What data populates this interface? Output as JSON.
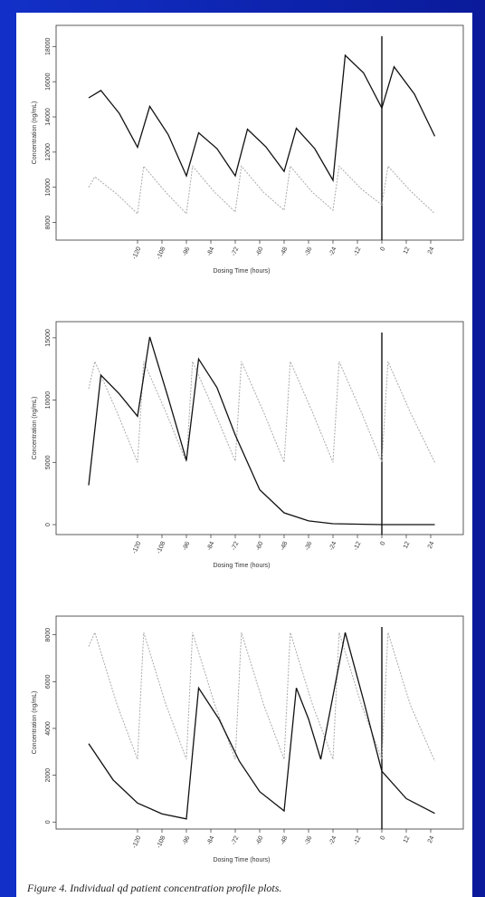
{
  "chart_data": [
    {
      "type": "line",
      "xlabel": "Dosing Time (hours)",
      "ylabel": "Concentration (ng/mL)",
      "xlim": [
        -160,
        40
      ],
      "ylim": [
        7000,
        19200
      ],
      "xticks": [
        -120,
        -108,
        -96,
        -84,
        -72,
        -60,
        -48,
        -36,
        -24,
        -12,
        0,
        12,
        24
      ],
      "yticks": [
        8000,
        10000,
        12000,
        14000,
        16000,
        18000
      ],
      "vline_x": 0,
      "series": [
        {
          "color": "#aaaaaa",
          "x": [
            -144,
            -141,
            -130,
            -120,
            -117,
            -106,
            -96,
            -93,
            -82,
            -72,
            -69,
            -58,
            -48,
            -45,
            -34,
            -24,
            -21,
            -10,
            0,
            3,
            14,
            26
          ],
          "values": [
            10000,
            10600,
            9600,
            8500,
            11200,
            9700,
            8500,
            11200,
            9700,
            8600,
            11200,
            9700,
            8700,
            11200,
            9700,
            8700,
            11200,
            9900,
            9000,
            11200,
            9800,
            8500
          ]
        },
        {
          "color": "#111111",
          "x": [
            -144,
            -138,
            -129,
            -120,
            -114,
            -105,
            -96,
            -90,
            -81,
            -72,
            -66,
            -57,
            -48,
            -42,
            -33,
            -24,
            -18,
            -9,
            0,
            6,
            16,
            26
          ],
          "values": [
            15080,
            15500,
            14200,
            12270,
            14600,
            13000,
            10650,
            13100,
            12200,
            10650,
            13300,
            12300,
            10900,
            13350,
            12200,
            10400,
            17500,
            16500,
            14500,
            16850,
            15300,
            12900
          ]
        }
      ]
    },
    {
      "type": "line",
      "xlabel": "Dosing Time (hours)",
      "ylabel": "Concentration (ng/mL)",
      "xlim": [
        -160,
        40
      ],
      "ylim": [
        -800,
        16300
      ],
      "xticks": [
        -120,
        -108,
        -96,
        -84,
        -72,
        -60,
        -48,
        -36,
        -24,
        -12,
        0,
        12,
        24
      ],
      "yticks": [
        0,
        5000,
        10000,
        15000
      ],
      "vline_x": 0,
      "series": [
        {
          "color": "#aaaaaa",
          "x": [
            -144,
            -141,
            -130,
            -120,
            -117,
            -106,
            -96,
            -93,
            -82,
            -72,
            -69,
            -58,
            -48,
            -45,
            -34,
            -24,
            -21,
            -10,
            0,
            3,
            14,
            26
          ],
          "values": [
            10900,
            13100,
            9000,
            5000,
            13100,
            9000,
            5000,
            13100,
            9000,
            5100,
            13100,
            9000,
            5000,
            13100,
            9000,
            5000,
            13100,
            9000,
            5000,
            13100,
            9000,
            5000
          ]
        },
        {
          "color": "#111111",
          "x": [
            -144,
            -138,
            -129,
            -120,
            -114,
            -105,
            -96,
            -90,
            -81,
            -72,
            -60,
            -48,
            -36,
            -24,
            0,
            26
          ],
          "values": [
            3160,
            12000,
            10500,
            8700,
            15070,
            10200,
            5150,
            13300,
            11000,
            7200,
            2800,
            950,
            300,
            70,
            0,
            0
          ]
        }
      ]
    },
    {
      "type": "line",
      "xlabel": "Dosing Time (hours)",
      "ylabel": "Concentration (ng/mL)",
      "xlim": [
        -160,
        40
      ],
      "ylim": [
        -300,
        8800
      ],
      "xticks": [
        -120,
        -108,
        -96,
        -84,
        -72,
        -60,
        -48,
        -36,
        -24,
        -12,
        0,
        12,
        24
      ],
      "yticks": [
        0,
        2000,
        4000,
        6000,
        8000
      ],
      "vline_x": 0,
      "series": [
        {
          "color": "#aaaaaa",
          "x": [
            -144,
            -141,
            -130,
            -120,
            -117,
            -106,
            -96,
            -93,
            -82,
            -72,
            -69,
            -58,
            -48,
            -45,
            -34,
            -24,
            -21,
            -10,
            0,
            3,
            14,
            26
          ],
          "values": [
            7500,
            8100,
            5000,
            2680,
            8100,
            5000,
            2680,
            8100,
            5000,
            2680,
            8100,
            5000,
            2680,
            8100,
            5000,
            2680,
            8100,
            5000,
            2700,
            8100,
            5000,
            2600
          ]
        },
        {
          "color": "#111111",
          "x": [
            -144,
            -132,
            -120,
            -108,
            -96,
            -90,
            -80,
            -70,
            -60,
            -48,
            -42,
            -36,
            -30,
            -18,
            -9,
            0,
            12,
            26
          ],
          "values": [
            3350,
            1800,
            810,
            350,
            135,
            5730,
            4400,
            2600,
            1300,
            475,
            5730,
            4400,
            2680,
            8100,
            5200,
            2170,
            1000,
            370
          ]
        }
      ]
    }
  ],
  "caption": "Figure 4.   Individual qd patient concentration profile plots."
}
